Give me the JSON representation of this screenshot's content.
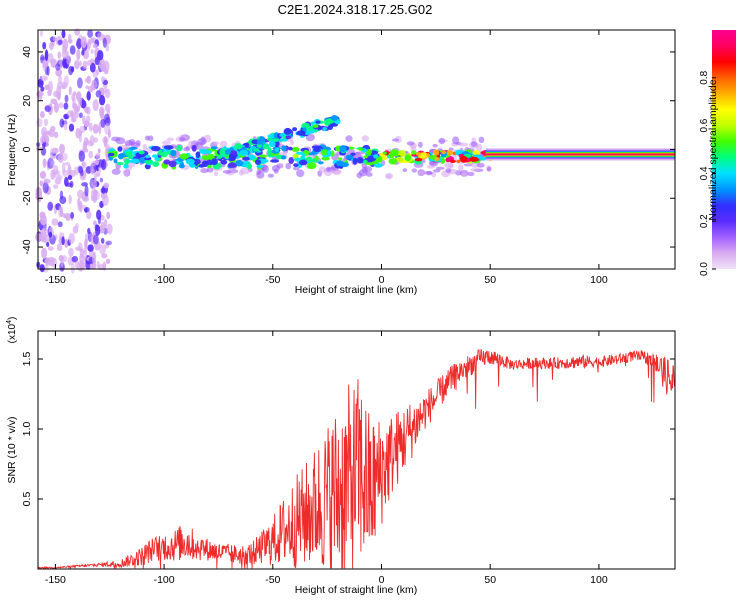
{
  "page_title": "C2E1.2024.318.17.25.G02",
  "chart_data": [
    {
      "type": "heatmap",
      "title": "C2E1.2024.318.17.25.G02",
      "xlabel": "Height of straight line (km)",
      "ylabel": "Frequency (Hz)",
      "xlim": [
        -158,
        135
      ],
      "ylim": [
        -49,
        49
      ],
      "x_ticks": [
        -150,
        -100,
        -50,
        0,
        50,
        100
      ],
      "x_tick_labels": [
        "-150",
        "-100",
        "-50",
        "0",
        "50",
        "100"
      ],
      "y_ticks": [
        -40,
        -20,
        0,
        20,
        40
      ],
      "y_tick_labels": [
        "-40",
        "-20",
        "0",
        "20",
        "40"
      ],
      "colorbar": {
        "label": "Normalized spectral amplitude",
        "range": [
          0,
          1
        ],
        "ticks": [
          0.0,
          0.2,
          0.4,
          0.6,
          0.8
        ],
        "tick_labels": [
          "0.0",
          "0.2",
          "0.4",
          "0.6",
          "0.8"
        ],
        "colors": [
          "#f2e3f8",
          "#d8aaf0",
          "#a060ff",
          "#5a2cff",
          "#3030ff",
          "#0096ff",
          "#00e0ff",
          "#00ff80",
          "#40ff00",
          "#c0ff00",
          "#ffff00",
          "#ffb000",
          "#ff6000",
          "#ff0000",
          "#ff0060",
          "#ff0090"
        ]
      },
      "features": [
        {
          "name": "noise",
          "x_range": [
            -158,
            -125
          ],
          "freq_range": [
            -49,
            49
          ],
          "amplitude": 0.2
        },
        {
          "name": "main-band",
          "x_range": [
            -125,
            50
          ],
          "center_freq": -3,
          "amplitude": 0.45
        },
        {
          "name": "rising-branch",
          "x_from": -75,
          "x_to": -20,
          "freq_from": -3,
          "freq_to": 12
        },
        {
          "name": "steady-line",
          "x_range": [
            48,
            135
          ],
          "center_freq": -2,
          "amplitude": 0.95
        }
      ]
    },
    {
      "type": "line",
      "xlabel": "Height of straight line (km)",
      "ylabel": "SNR (10 * v/v)",
      "multiplier_label": "(x10^4)",
      "xlim": [
        -158,
        135
      ],
      "ylim": [
        0,
        1.7
      ],
      "x_ticks": [
        -150,
        -100,
        -50,
        0,
        50,
        100
      ],
      "x_tick_labels": [
        "-150",
        "-100",
        "-50",
        "0",
        "50",
        "100"
      ],
      "y_ticks": [
        0.5,
        1.0,
        1.5
      ],
      "y_tick_labels": [
        "0.5",
        "1.0",
        "1.5"
      ],
      "series": [
        {
          "name": "SNR",
          "color": "#ee2a2a",
          "x": [
            -158,
            -150,
            -140,
            -130,
            -120,
            -112,
            -105,
            -100,
            -95,
            -90,
            -85,
            -80,
            -75,
            -70,
            -65,
            -60,
            -55,
            -50,
            -45,
            -40,
            -35,
            -30,
            -25,
            -20,
            -15,
            -10,
            -5,
            0,
            5,
            10,
            15,
            20,
            25,
            30,
            35,
            40,
            45,
            50,
            55,
            60,
            70,
            80,
            90,
            100,
            110,
            115,
            120,
            125,
            130,
            135
          ],
          "y": [
            0.01,
            0.01,
            0.02,
            0.03,
            0.04,
            0.08,
            0.14,
            0.16,
            0.17,
            0.2,
            0.16,
            0.14,
            0.12,
            0.11,
            0.1,
            0.11,
            0.15,
            0.2,
            0.27,
            0.33,
            0.38,
            0.45,
            0.5,
            0.55,
            0.62,
            0.7,
            0.55,
            0.7,
            0.82,
            0.92,
            1.02,
            1.13,
            1.22,
            1.32,
            1.4,
            1.45,
            1.5,
            1.52,
            1.49,
            1.46,
            1.47,
            1.47,
            1.48,
            1.48,
            1.5,
            1.52,
            1.52,
            1.49,
            1.4,
            1.3
          ],
          "noise_scale": [
            0.004,
            0.004,
            0.008,
            0.012,
            0.03,
            0.06,
            0.09,
            0.1,
            0.12,
            0.14,
            0.1,
            0.08,
            0.07,
            0.07,
            0.07,
            0.08,
            0.12,
            0.18,
            0.25,
            0.33,
            0.38,
            0.45,
            0.55,
            0.65,
            0.7,
            0.7,
            0.55,
            0.4,
            0.3,
            0.25,
            0.2,
            0.14,
            0.12,
            0.1,
            0.09,
            0.08,
            0.07,
            0.06,
            0.05,
            0.04,
            0.04,
            0.04,
            0.05,
            0.04,
            0.04,
            0.04,
            0.04,
            0.06,
            0.12,
            0.2
          ]
        }
      ]
    }
  ]
}
